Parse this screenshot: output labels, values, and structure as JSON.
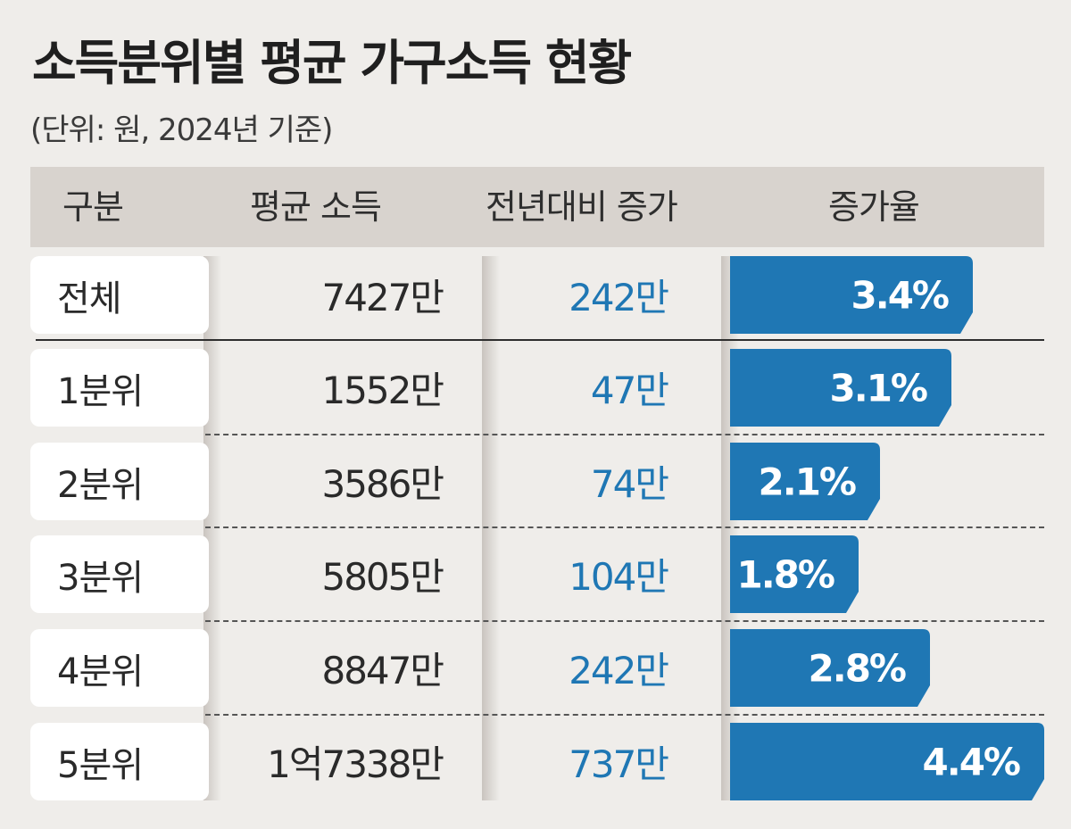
{
  "title": "소득분위별 평균 가구소득 현황",
  "subtitle": "(단위: 원, 2024년 기준)",
  "header": {
    "col1": "구분",
    "col2": "평균 소득",
    "col3": "전년대비 증가",
    "col4": "증가율"
  },
  "colors": {
    "bar": "#1f77b4",
    "increase_text": "#1f77b4",
    "header_bg": "#d8d3ce"
  },
  "chart_data": {
    "type": "table",
    "columns": [
      "구분",
      "평균 소득",
      "전년대비 증가",
      "증가율"
    ],
    "rows": [
      {
        "group": "전체",
        "income": "7427만",
        "increase": "242만",
        "rate": 3.4,
        "rate_label": "3.4%"
      },
      {
        "group": "1분위",
        "income": "1552만",
        "increase": "47만",
        "rate": 3.1,
        "rate_label": "3.1%"
      },
      {
        "group": "2분위",
        "income": "3586만",
        "increase": "74만",
        "rate": 2.1,
        "rate_label": "2.1%"
      },
      {
        "group": "3분위",
        "income": "5805만",
        "increase": "104만",
        "rate": 1.8,
        "rate_label": "1.8%"
      },
      {
        "group": "4분위",
        "income": "8847만",
        "increase": "242만",
        "rate": 2.8,
        "rate_label": "2.8%"
      },
      {
        "group": "5분위",
        "income": "1억7338만",
        "increase": "737만",
        "rate": 4.4,
        "rate_label": "4.4%"
      }
    ]
  }
}
